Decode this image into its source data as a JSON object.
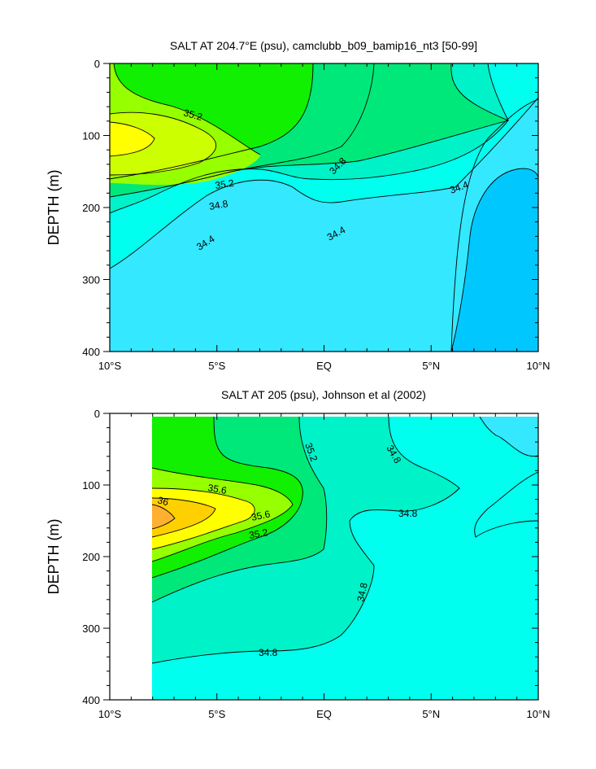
{
  "chart_data": [
    {
      "type": "contour",
      "title": "SALT AT 204.7°E (psu), camclubb_b09_bamip16_nt3 [50-99]",
      "ylabel": "DEPTH (m)",
      "xlabel": "",
      "x_tick_labels": [
        "10°S",
        "5°S",
        "EQ",
        "5°N",
        "10°N"
      ],
      "x_ticks": [
        -10,
        -5,
        0,
        5,
        10
      ],
      "y_tick_labels": [
        "0",
        "100",
        "200",
        "300",
        "400"
      ],
      "y_ticks": [
        0,
        100,
        200,
        300,
        400
      ],
      "xlim": [
        -10,
        10
      ],
      "ylim": [
        0,
        400
      ],
      "y_inverted": true,
      "contour_labels": [
        "35.2",
        "35.2",
        "34.8",
        "34.8",
        "34.4",
        "34.4",
        "34.4"
      ],
      "contour_levels": [
        34.2,
        34.4,
        34.6,
        34.8,
        35.0,
        35.2,
        35.4,
        35.6
      ]
    },
    {
      "type": "contour",
      "title": "SALT AT 205 (psu), Johnson et al (2002)",
      "ylabel": "DEPTH (m)",
      "xlabel": "",
      "x_tick_labels": [
        "10°S",
        "5°S",
        "EQ",
        "5°N",
        "10°N"
      ],
      "x_ticks": [
        -10,
        -5,
        0,
        5,
        10
      ],
      "y_tick_labels": [
        "0",
        "100",
        "200",
        "300",
        "400"
      ],
      "y_ticks": [
        0,
        100,
        200,
        300,
        400
      ],
      "xlim": [
        -10,
        10
      ],
      "ylim": [
        0,
        400
      ],
      "y_inverted": true,
      "data_x_range": [
        -8,
        10
      ],
      "contour_labels": [
        "35.6",
        "36",
        "35.6",
        "35.2",
        "35.2",
        "34.8",
        "34.8",
        "34.8",
        "34.8"
      ],
      "contour_levels": [
        34.4,
        34.6,
        34.8,
        35.0,
        35.2,
        35.4,
        35.6,
        35.8,
        36.0
      ]
    }
  ],
  "colors": {
    "s34_2": "#00c8ff",
    "s34_4": "#33e8ff",
    "s34_6": "#00ffee",
    "s34_8": "#00f2c8",
    "s35_0": "#00e87a",
    "s35_2": "#10f000",
    "s35_4": "#96ff00",
    "s35_6": "#ffff00",
    "s35_8": "#ffd000",
    "s36_0": "#ffb030"
  }
}
